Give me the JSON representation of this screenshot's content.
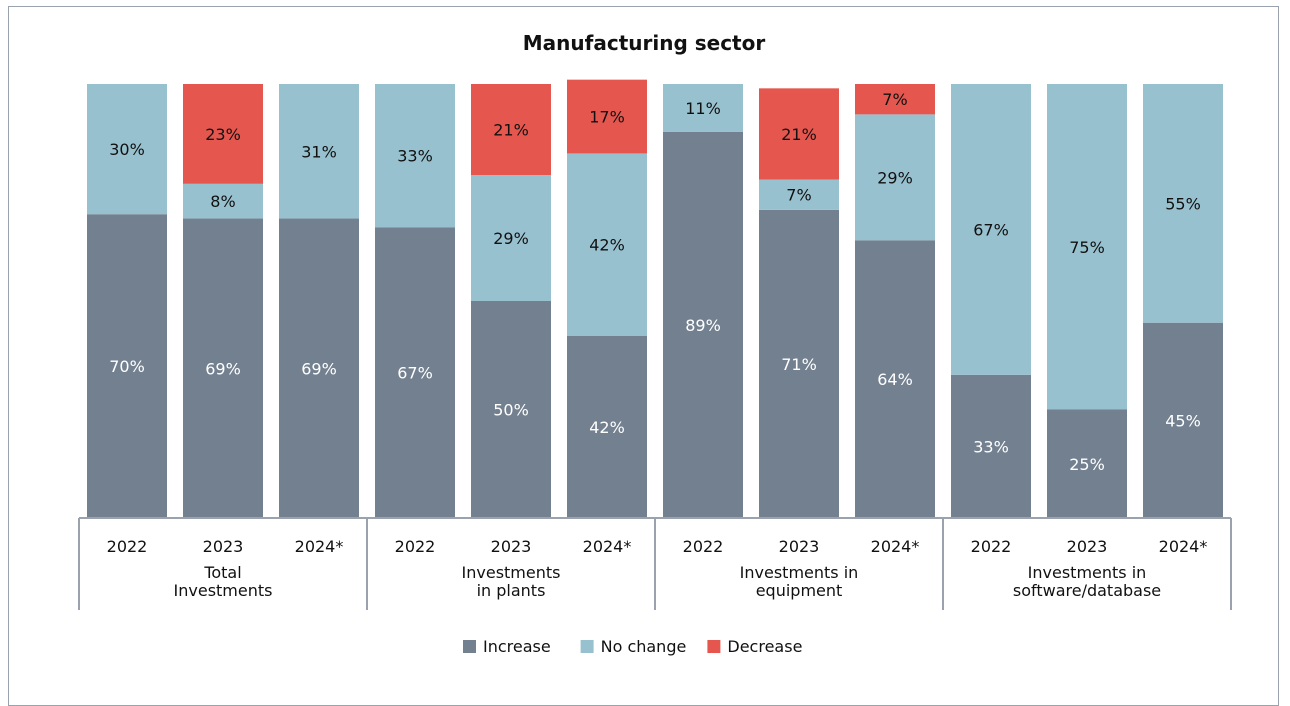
{
  "chart_data": {
    "type": "bar",
    "stacked": "percent",
    "title": "Manufacturing sector",
    "groups": [
      {
        "lines": [
          "Total",
          "Investments"
        ],
        "categories": [
          "2022",
          "2023",
          "2024*"
        ]
      },
      {
        "lines": [
          "Investments",
          "in plants"
        ],
        "categories": [
          "2022",
          "2023",
          "2024*"
        ]
      },
      {
        "lines": [
          "Investments in",
          "equipment"
        ],
        "categories": [
          "2022",
          "2023",
          "2024*"
        ]
      },
      {
        "lines": [
          "Investments in",
          "software/database"
        ],
        "categories": [
          "2022",
          "2023",
          "2024*"
        ]
      }
    ],
    "series": [
      {
        "name": "Increase",
        "color": "#738090",
        "values": [
          70,
          69,
          69,
          67,
          50,
          42,
          89,
          71,
          64,
          33,
          25,
          45
        ],
        "labels": [
          "70%",
          "69%",
          "69%",
          "67%",
          "50%",
          "42%",
          "89%",
          "71%",
          "64%",
          "33%",
          "25%",
          "45%"
        ]
      },
      {
        "name": "No change",
        "color": "#98c1cf",
        "values": [
          30,
          8,
          31,
          33,
          29,
          42,
          11,
          7,
          29,
          67,
          75,
          55
        ],
        "labels": [
          "30%",
          "8%",
          "31%",
          "33%",
          "29%",
          "42%",
          "11%",
          "7%",
          "29%",
          "67%",
          "75%",
          "55%"
        ]
      },
      {
        "name": "Decrease",
        "color": "#e5574e",
        "values": [
          0,
          23,
          0,
          0,
          21,
          17,
          0,
          21,
          7,
          0,
          0,
          0
        ],
        "labels": [
          "",
          "23%",
          "",
          "",
          "21%",
          "17%",
          "",
          "21%",
          "7%",
          "",
          "",
          ""
        ]
      }
    ],
    "ylim": [
      0,
      100
    ],
    "legend": "bottom-center",
    "grid": false
  }
}
